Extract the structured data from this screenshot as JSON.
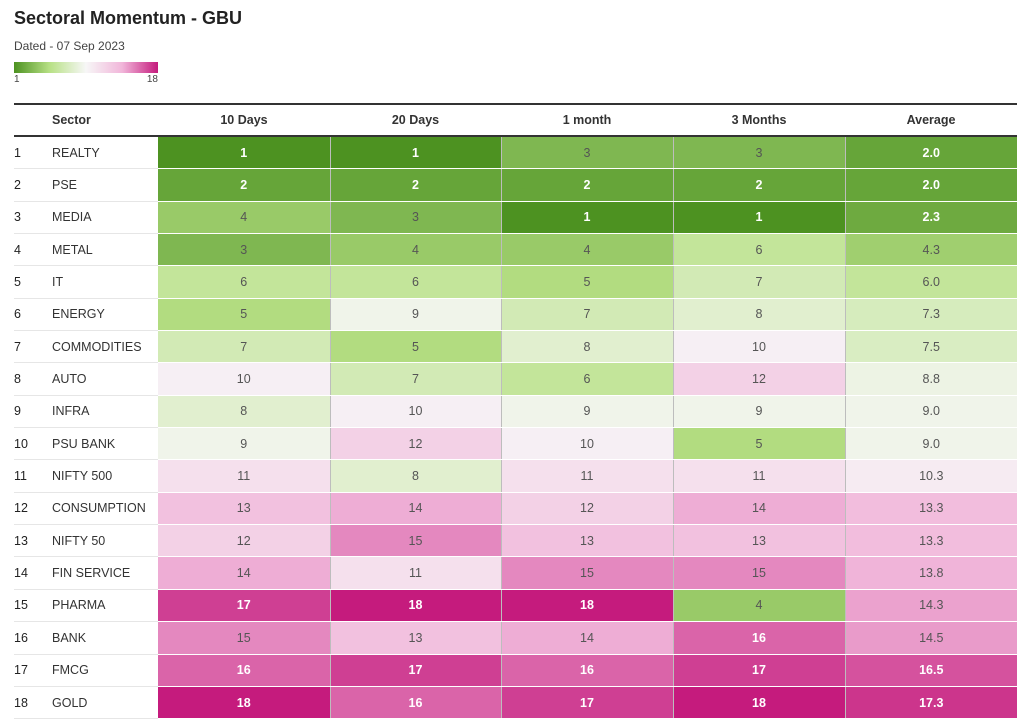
{
  "title": "Sectoral Momentum - GBU",
  "subtitle": "Dated - 07 Sep 2023",
  "legend": {
    "min": "1",
    "max": "18",
    "color_low": "#4d9221",
    "color_mid": "#f7f7f7",
    "color_high": "#c51b7d"
  },
  "chart_data": {
    "type": "table",
    "title": "Sectoral Momentum - GBU",
    "subtitle": "Dated - 07 Sep 2023",
    "columns": [
      "Sector",
      "10 Days",
      "20 Days",
      "1 month",
      "3 Months",
      "Average"
    ],
    "rows": [
      {
        "rank": "1",
        "sector": "REALTY",
        "values": [
          "1",
          "1",
          "3",
          "3",
          "2.0"
        ]
      },
      {
        "rank": "2",
        "sector": "PSE",
        "values": [
          "2",
          "2",
          "2",
          "2",
          "2.0"
        ]
      },
      {
        "rank": "3",
        "sector": "MEDIA",
        "values": [
          "4",
          "3",
          "1",
          "1",
          "2.3"
        ]
      },
      {
        "rank": "4",
        "sector": "METAL",
        "values": [
          "3",
          "4",
          "4",
          "6",
          "4.3"
        ]
      },
      {
        "rank": "5",
        "sector": "IT",
        "values": [
          "6",
          "6",
          "5",
          "7",
          "6.0"
        ]
      },
      {
        "rank": "6",
        "sector": "ENERGY",
        "values": [
          "5",
          "9",
          "7",
          "8",
          "7.3"
        ]
      },
      {
        "rank": "7",
        "sector": "COMMODITIES",
        "values": [
          "7",
          "5",
          "8",
          "10",
          "7.5"
        ]
      },
      {
        "rank": "8",
        "sector": "AUTO",
        "values": [
          "10",
          "7",
          "6",
          "12",
          "8.8"
        ]
      },
      {
        "rank": "9",
        "sector": "INFRA",
        "values": [
          "8",
          "10",
          "9",
          "9",
          "9.0"
        ]
      },
      {
        "rank": "10",
        "sector": "PSU BANK",
        "values": [
          "9",
          "12",
          "10",
          "5",
          "9.0"
        ]
      },
      {
        "rank": "11",
        "sector": "NIFTY 500",
        "values": [
          "11",
          "8",
          "11",
          "11",
          "10.3"
        ]
      },
      {
        "rank": "12",
        "sector": "CONSUMPTION",
        "values": [
          "13",
          "14",
          "12",
          "14",
          "13.3"
        ]
      },
      {
        "rank": "13",
        "sector": "NIFTY 50",
        "values": [
          "12",
          "15",
          "13",
          "13",
          "13.3"
        ]
      },
      {
        "rank": "14",
        "sector": "FIN SERVICE",
        "values": [
          "14",
          "11",
          "15",
          "15",
          "13.8"
        ]
      },
      {
        "rank": "15",
        "sector": "PHARMA",
        "values": [
          "17",
          "18",
          "18",
          "4",
          "14.3"
        ]
      },
      {
        "rank": "16",
        "sector": "BANK",
        "values": [
          "15",
          "13",
          "14",
          "16",
          "14.5"
        ]
      },
      {
        "rank": "17",
        "sector": "FMCG",
        "values": [
          "16",
          "17",
          "16",
          "17",
          "16.5"
        ]
      },
      {
        "rank": "18",
        "sector": "GOLD",
        "values": [
          "18",
          "16",
          "17",
          "18",
          "17.3"
        ]
      }
    ],
    "color_scale": {
      "min": 1,
      "max": 18
    }
  }
}
